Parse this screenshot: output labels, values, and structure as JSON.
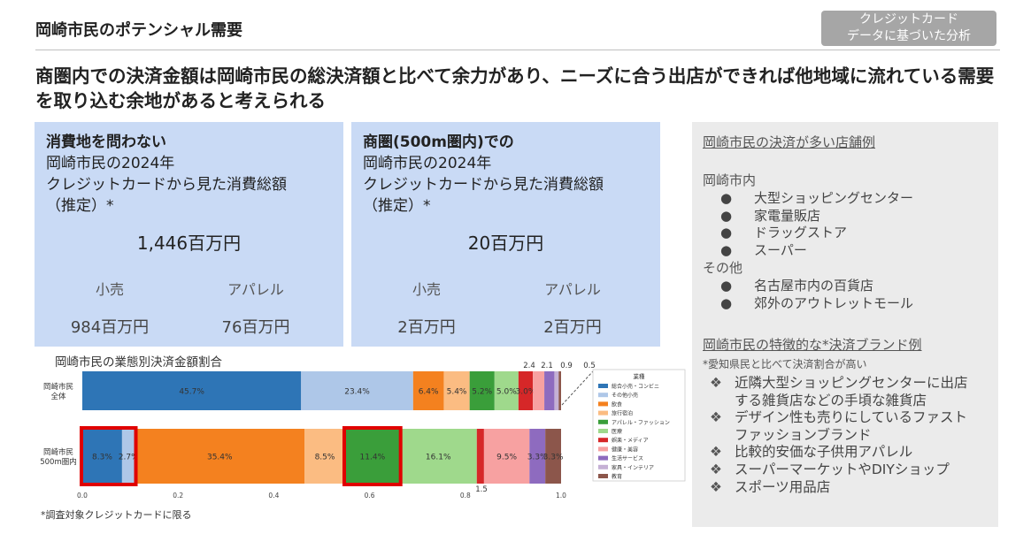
{
  "header": {
    "title": "岡崎市民のポテンシャル需要",
    "tag_line1": "クレジットカード",
    "tag_line2": "データに基づいた分析"
  },
  "headline": "商圏内での決済金額は岡崎市民の総決済額と比べて余力があり、ニーズに合う出店ができれば他地域に流れている需要を取り込む余地があると考えられる",
  "kpi_left": {
    "head_bold": "消費地を問わない",
    "head_line2": "岡崎市民の2024年",
    "head_line3": "クレジットカードから見た消費総額",
    "head_line4": "（推定）*",
    "total": "1,446百万円",
    "sub1_label": "小売",
    "sub2_label": "アパレル",
    "sub1_value": "984百万円",
    "sub2_value": "76百万円"
  },
  "kpi_right": {
    "head_bold": "商圏(500m圏内)での",
    "head_line2": "岡崎市民の2024年",
    "head_line3": "クレジットカードから見た消費総額",
    "head_line4": "（推定）*",
    "total": "20百万円",
    "sub1_label": "小売",
    "sub2_label": "アパレル",
    "sub1_value": "2百万円",
    "sub2_value": "2百万円"
  },
  "right_panel": {
    "section1_title": "岡崎市民の決済が多い店舗例",
    "group1_title": "岡崎市内",
    "group1_items": [
      "大型ショッピングセンター",
      "家電量販店",
      "ドラッグストア",
      "スーパー"
    ],
    "group2_title": "その他",
    "group2_items": [
      "名古屋市内の百貨店",
      "郊外のアウトレットモール"
    ],
    "bullet_glyph": "●",
    "section2_title": "岡崎市民の特徴的な*決済ブランド例",
    "section2_note": "*愛知県民と比べて決済割合が高い",
    "diamond_glyph": "❖",
    "brands": [
      {
        "line1": "近隣大型ショッピングセンターに出店",
        "line2": "する雑貨店などの手頃な雑貨店"
      },
      {
        "line1": "デザイン性も売りにしているファスト",
        "line2": "ファッションブランド"
      },
      {
        "line1": "比較的安価な子供用アパレル",
        "line2": ""
      },
      {
        "line1": "スーパーマーケットやDIYショップ",
        "line2": ""
      },
      {
        "line1": "スポーツ用品店",
        "line2": ""
      }
    ]
  },
  "footnote": "*調査対象クレジットカードに限る",
  "chart_data": {
    "type": "bar",
    "orientation": "horizontal-stacked-100",
    "title": "岡崎市民の業態別決済金額割合",
    "categories": [
      "岡崎市民\n全体",
      "岡崎市民\n500m圏内"
    ],
    "category_labels": [
      [
        "岡崎市民",
        "全体"
      ],
      [
        "岡崎市民",
        "500m圏内"
      ]
    ],
    "xlim": [
      0,
      1.0
    ],
    "xticks": [
      "0.0",
      "0.2",
      "0.4",
      "0.6",
      "0.8",
      "1.0"
    ],
    "legend_title": "業種",
    "legend_position": "right",
    "series": [
      {
        "name": "総合小売・コンビニ",
        "color": "#2e75b6",
        "values": [
          0.457,
          0.083
        ]
      },
      {
        "name": "その他小売",
        "color": "#aec7e8",
        "values": [
          0.234,
          0.027
        ]
      },
      {
        "name": "飲食",
        "color": "#f4811f",
        "values": [
          0.064,
          0.354
        ]
      },
      {
        "name": "旅行宿泊",
        "color": "#fbbc82",
        "values": [
          0.054,
          0.085
        ]
      },
      {
        "name": "アパレル・ファッション",
        "color": "#3a9e3a",
        "values": [
          0.052,
          0.114
        ]
      },
      {
        "name": "医療",
        "color": "#9fd98c",
        "values": [
          0.05,
          0.161
        ]
      },
      {
        "name": "娯楽・メディア",
        "color": "#d62728",
        "values": [
          0.03,
          0.015
        ]
      },
      {
        "name": "健康・美容",
        "color": "#f7a1a1",
        "values": [
          0.024,
          0.095
        ]
      },
      {
        "name": "生活サービス",
        "color": "#8e6bbf",
        "values": [
          0.021,
          0.033
        ]
      },
      {
        "name": "家具・インテリア",
        "color": "#c5b0d5",
        "values": [
          0.009,
          0.0
        ]
      },
      {
        "name": "教育",
        "color": "#8c564b",
        "values": [
          0.005,
          0.033
        ]
      }
    ],
    "segment_labels": [
      [
        "45.7%",
        "23.4%",
        "6.4%",
        "5.4%",
        "5.2%",
        "5.0%",
        "3.0%",
        "",
        "",
        "",
        ""
      ],
      [
        "8.3%",
        "2.7%",
        "35.4%",
        "8.5%",
        "11.4%",
        "16.1%",
        "",
        "9.5%",
        "3.3%",
        "",
        "3.3%"
      ]
    ],
    "callouts_top": [
      "2.4",
      "2.1",
      "0.9",
      "0.5"
    ],
    "callout_bottom": "1.5",
    "highlight_boxes": "red outline around 総合小売+その他小売 and アパレル・ファッション in 500m圏内 row"
  }
}
